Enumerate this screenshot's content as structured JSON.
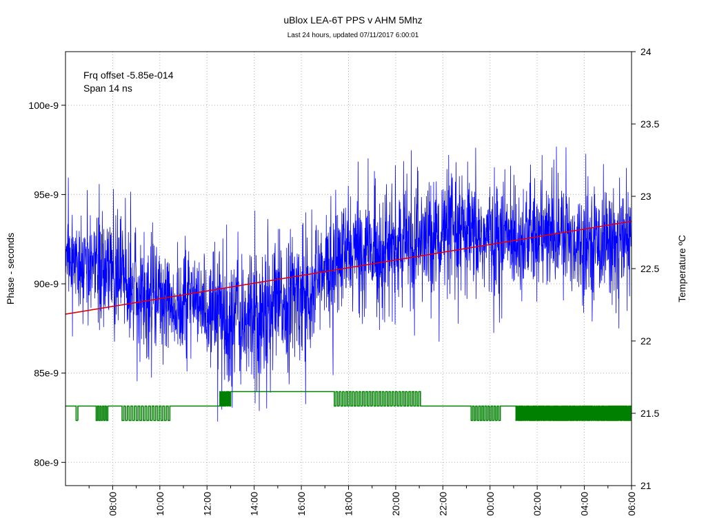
{
  "chart_data": {
    "type": "line",
    "title": "uBlox LEA-6T PPS v AHM 5Mhz",
    "subtitle": "Last 24 hours, updated 07/11/2017  6:00:01",
    "ylabel": "Phase - seconds",
    "y2label": "Temperature ºC",
    "annotations": [
      "Frq offset -5.85e-014",
      "Span 14 ns"
    ],
    "ylim": [
      7.87e-08,
      1.03e-07
    ],
    "y2lim": [
      21,
      24
    ],
    "y_ticks": [
      {
        "value": 1e-07,
        "label": "100e-9"
      },
      {
        "value": 9.5e-08,
        "label": "95e-9"
      },
      {
        "value": 9e-08,
        "label": "90e-9"
      },
      {
        "value": 8.5e-08,
        "label": "85e-9"
      },
      {
        "value": 8e-08,
        "label": "80e-9"
      }
    ],
    "y2_ticks": [
      {
        "value": 24,
        "label": "24"
      },
      {
        "value": 23.5,
        "label": "23.5"
      },
      {
        "value": 23,
        "label": "23"
      },
      {
        "value": 22.5,
        "label": "22.5"
      },
      {
        "value": 22,
        "label": "22"
      },
      {
        "value": 21.5,
        "label": "21.5"
      },
      {
        "value": 21,
        "label": "21"
      }
    ],
    "xlim_hours": [
      6.0,
      30.0
    ],
    "x_ticks": [
      {
        "value": 8,
        "label": "08:00"
      },
      {
        "value": 10,
        "label": "10:00"
      },
      {
        "value": 12,
        "label": "12:00"
      },
      {
        "value": 14,
        "label": "14:00"
      },
      {
        "value": 16,
        "label": "16:00"
      },
      {
        "value": 18,
        "label": "18:00"
      },
      {
        "value": 20,
        "label": "20:00"
      },
      {
        "value": 22,
        "label": "22:00"
      },
      {
        "value": 24,
        "label": "00:00"
      },
      {
        "value": 26,
        "label": "02:00"
      },
      {
        "value": 28,
        "label": "04:00"
      },
      {
        "value": 30,
        "label": "06:00"
      }
    ],
    "x_minor_ticks": [
      7,
      9,
      11,
      13,
      15,
      17,
      19,
      21,
      23,
      25,
      27,
      29
    ],
    "grid": true,
    "series": [
      {
        "axis": "left",
        "color": "#0000ff",
        "style": "noisy",
        "points": [
          [
            6.0,
            9.1e-08
          ],
          [
            7.0,
            9.13e-08
          ],
          [
            8.0,
            9.08e-08
          ],
          [
            9.0,
            8.98e-08
          ],
          [
            10.0,
            8.92e-08
          ],
          [
            11.0,
            8.88e-08
          ],
          [
            12.0,
            8.86e-08
          ],
          [
            13.0,
            8.82e-08
          ],
          [
            14.0,
            8.78e-08
          ],
          [
            15.0,
            8.88e-08
          ],
          [
            16.0,
            8.95e-08
          ],
          [
            17.0,
            9.05e-08
          ],
          [
            18.0,
            9.18e-08
          ],
          [
            19.0,
            9.18e-08
          ],
          [
            20.0,
            9.2e-08
          ],
          [
            21.0,
            9.23e-08
          ],
          [
            22.0,
            9.28e-08
          ],
          [
            23.0,
            9.26e-08
          ],
          [
            24.0,
            9.25e-08
          ],
          [
            25.0,
            9.27e-08
          ],
          [
            26.0,
            9.26e-08
          ],
          [
            27.0,
            9.26e-08
          ],
          [
            28.0,
            9.23e-08
          ],
          [
            29.0,
            9.24e-08
          ],
          [
            30.0,
            9.23e-08
          ]
        ],
        "spread": [
          [
            6.0,
            2.6e-09
          ],
          [
            10.0,
            2.7e-09
          ],
          [
            14.0,
            3.6e-09
          ],
          [
            18.0,
            2.8e-09
          ],
          [
            22.0,
            3e-09
          ],
          [
            26.0,
            2.8e-09
          ],
          [
            30.0,
            2.6e-09
          ]
        ]
      },
      {
        "axis": "left",
        "color": "#dd0000",
        "style": "line",
        "points": [
          [
            6.0,
            8.83e-08
          ],
          [
            30.0,
            9.35e-08
          ]
        ]
      },
      {
        "axis": "right",
        "color": "#008000",
        "style": "step",
        "levels": [
          21.5,
          21.55,
          21.6,
          21.65
        ],
        "segments": [
          {
            "start": 6.0,
            "end": 6.45,
            "low": 21.55,
            "high": 21.55,
            "flicker": 0
          },
          {
            "start": 6.45,
            "end": 6.6,
            "low": 21.45,
            "high": 21.55,
            "flicker": 1
          },
          {
            "start": 6.6,
            "end": 7.3,
            "low": 21.55,
            "high": 21.55,
            "flicker": 0
          },
          {
            "start": 7.3,
            "end": 7.85,
            "low": 21.45,
            "high": 21.55,
            "flicker": 5
          },
          {
            "start": 7.85,
            "end": 8.4,
            "low": 21.55,
            "high": 21.55,
            "flicker": 0
          },
          {
            "start": 8.4,
            "end": 10.5,
            "low": 21.45,
            "high": 21.55,
            "flicker": 14
          },
          {
            "start": 10.5,
            "end": 12.5,
            "low": 21.55,
            "high": 21.55,
            "flicker": 0
          },
          {
            "start": 12.5,
            "end": 13.05,
            "low": 21.55,
            "high": 21.65,
            "flicker": 6
          },
          {
            "start": 13.05,
            "end": 17.4,
            "low": 21.65,
            "high": 21.65,
            "flicker": 0
          },
          {
            "start": 17.4,
            "end": 21.05,
            "low": 21.55,
            "high": 21.65,
            "flicker": 26
          },
          {
            "start": 21.05,
            "end": 23.2,
            "low": 21.55,
            "high": 21.55,
            "flicker": 0
          },
          {
            "start": 23.2,
            "end": 24.5,
            "low": 21.45,
            "high": 21.55,
            "flicker": 10
          },
          {
            "start": 24.5,
            "end": 25.1,
            "low": 21.55,
            "high": 21.55,
            "flicker": 0
          },
          {
            "start": 25.1,
            "end": 30.0,
            "low": 21.45,
            "high": 21.55,
            "flicker": 60
          }
        ]
      }
    ]
  }
}
